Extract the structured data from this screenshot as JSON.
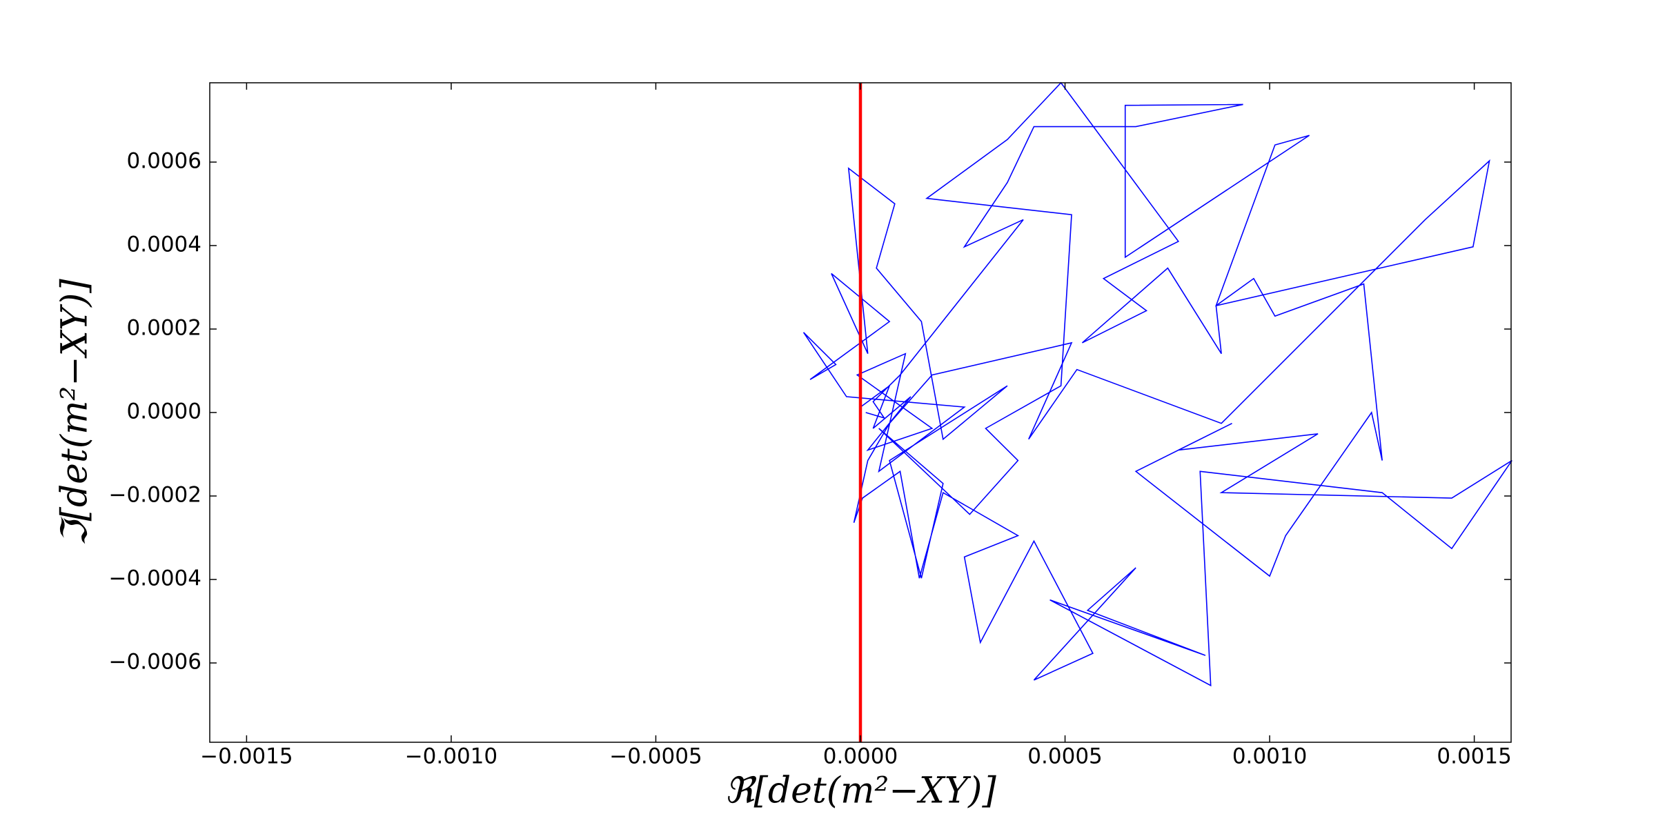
{
  "chart_data": {
    "type": "line",
    "xlabel": "ℜ[det(m²−XY)]",
    "ylabel": "ℑ[det(m²−XY)]",
    "xlim": [
      -0.00159,
      0.00159
    ],
    "ylim": [
      -0.00079,
      0.00079
    ],
    "xticks": [
      {
        "value": -0.0015,
        "label": "−0.0015"
      },
      {
        "value": -0.001,
        "label": "−0.0010"
      },
      {
        "value": -0.0005,
        "label": "−0.0005"
      },
      {
        "value": 0,
        "label": "0.0000"
      },
      {
        "value": 0.0005,
        "label": "0.0005"
      },
      {
        "value": 0.001,
        "label": "0.0010"
      },
      {
        "value": 0.0015,
        "label": "0.0015"
      }
    ],
    "yticks": [
      {
        "value": -0.0006,
        "label": "−0.0006"
      },
      {
        "value": -0.0004,
        "label": "−0.0004"
      },
      {
        "value": -0.0002,
        "label": "−0.0002"
      },
      {
        "value": 0,
        "label": "0.0000"
      },
      {
        "value": 0.0002,
        "label": "0.0002"
      },
      {
        "value": 0.0004,
        "label": "0.0004"
      },
      {
        "value": 0.0006,
        "label": "0.0006"
      }
    ],
    "grid": false,
    "vline": {
      "x": 0,
      "color": "#ff0000"
    },
    "series": [
      {
        "color": "#0000ff",
        "x": [
          0,
          7.1e-05,
          3.1e-05,
          0.000123,
          1.8e-05,
          0.000175,
          -8e-06,
          0.00011,
          4.5e-05,
          0.000254,
          -3.4e-05,
          -0.000139,
          -6e-05,
          -0.000123,
          7.1e-05,
          -7.1e-05,
          1.8e-05,
          -2.9e-05,
          8.4e-05,
          3.9e-05,
          0.000149,
          0.000202,
          0.000359,
          7.1e-05,
          0.000149,
          0.000202,
          4.5e-05,
          0.000267,
          0.000385,
          0.000306,
          0.00049,
          0.000516,
          0.000162,
          0.000359,
          0.00049,
          0.000777,
          0.000594,
          0.000699,
          0.000542,
          0.000751,
          0.000882,
          0.000869,
          0.000961,
          0.001013,
          0.00123,
          0.001275,
          0.001249,
          0.001039,
          0.001,
          0.000673,
          0.000908,
          0.000777,
          0.001118,
          0.000882,
          0.001445,
          0.001592,
          0.001445,
          0.001275,
          0.00083,
          0.000856,
          0.000463,
          0.000843,
          0.000555,
          0.000673,
          0.000424,
          0.000568,
          0.000424,
          0.000293,
          0.000254,
          0.000385,
          0.000202,
          0.000144,
          9.7e-05,
          5e-06,
          -1.6e-05,
          1.8e-05,
          7.1e-05,
          0.000175,
          0.000516,
          0.000411,
          0.000529,
          0.000882,
          0.00138,
          0.001537,
          0.001497,
          0.000869,
          0.001013,
          0.001097,
          0.000647,
          0.000647,
          0.000935,
          0.000673,
          0.000424,
          0.000359,
          0.000254,
          0.000398,
          9.7e-05,
          3.1e-05,
          5.8e-05,
          1.3e-05
        ],
        "values": [
          1.3e-05,
          6.4e-05,
          -3.8e-05,
          3.8e-05,
          -9e-05,
          -3.8e-05,
          9e-05,
          0.000141,
          -0.000141,
          1.3e-05,
          3.8e-05,
          0.000192,
          0.000115,
          7.9e-05,
          0.000218,
          0.000333,
          0.000141,
          0.000585,
          0.0005,
          0.000346,
          0.000218,
          -6.4e-05,
          6.4e-05,
          -0.000115,
          -0.000397,
          -0.00017,
          -3.8e-05,
          -0.000244,
          -0.000115,
          -3.8e-05,
          6.4e-05,
          0.000474,
          0.000513,
          0.000654,
          0.00079,
          0.00041,
          0.000321,
          0.000244,
          0.000167,
          0.000346,
          0.000141,
          0.000256,
          0.000321,
          0.000231,
          0.000308,
          -0.000115,
          0,
          -0.000295,
          -0.000392,
          -0.000141,
          -2.6e-05,
          -9e-05,
          -5.1e-05,
          -0.000192,
          -0.000205,
          -0.000115,
          -0.000326,
          -0.000192,
          -0.000141,
          -0.000654,
          -0.000449,
          -0.000582,
          -0.000474,
          -0.000372,
          -0.000641,
          -0.000577,
          -0.000308,
          -0.000551,
          -0.000346,
          -0.000295,
          -0.000192,
          -0.000397,
          -0.000141,
          -0.000205,
          -0.000264,
          -0.000115,
          -2.6e-05,
          9e-05,
          0.000167,
          -6.4e-05,
          0.000103,
          -2.6e-05,
          0.000462,
          0.000603,
          0.000397,
          0.000256,
          0.000641,
          0.000664,
          0.000372,
          0.000736,
          0.000738,
          0.000685,
          0.000685,
          0.000551,
          0.000397,
          0.000462,
          9e-05,
          2.6e-05,
          -1.3e-05,
          0
        ]
      }
    ]
  }
}
